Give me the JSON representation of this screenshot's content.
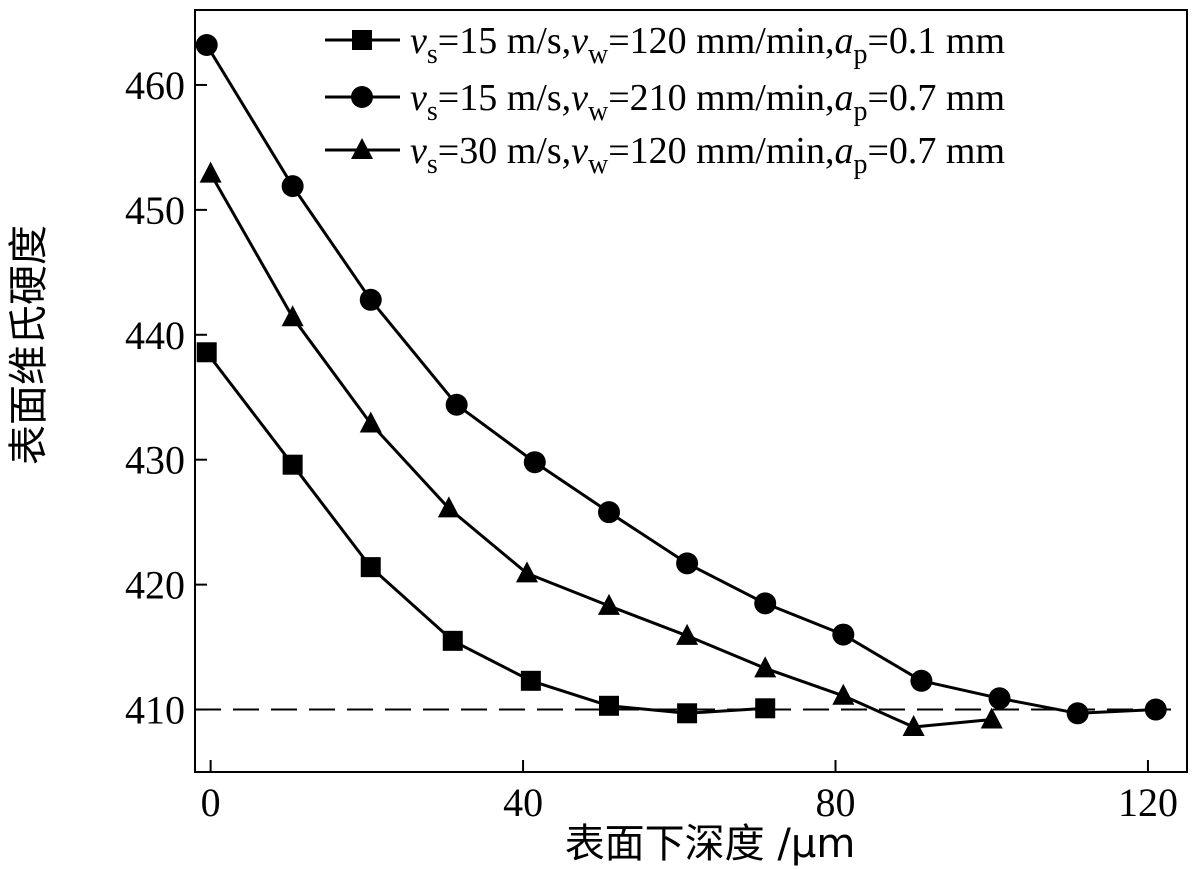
{
  "chart_data": {
    "type": "line",
    "xlabel": "表面下深度 /μm",
    "ylabel": "表面维氏硬度",
    "xlim": [
      -2,
      125
    ],
    "ylim": [
      405,
      466
    ],
    "xticks": [
      0,
      40,
      80,
      120
    ],
    "yticks": [
      410,
      420,
      430,
      440,
      450,
      460
    ],
    "grid": false,
    "legend_position": "top-right",
    "reference_line": {
      "y": 410,
      "style": "dashed"
    },
    "series": [
      {
        "legend": {
          "vs": "=15 m/s,",
          "vw": "=120 mm/min,",
          "ap": "=0.1 mm"
        },
        "marker": "square",
        "x": [
          -0.5,
          10.5,
          20.5,
          31,
          41,
          51,
          61,
          71
        ],
        "y": [
          438.6,
          429.6,
          421.4,
          415.5,
          412.3,
          410.3,
          409.7,
          410.1
        ]
      },
      {
        "legend": {
          "vs": "=15 m/s,",
          "vw": "=210 mm/min,",
          "ap": "=0.7 mm"
        },
        "marker": "circle",
        "x": [
          -0.5,
          10.5,
          20.5,
          31.5,
          41.5,
          51,
          61,
          71,
          81,
          91,
          101,
          111,
          121
        ],
        "y": [
          463.2,
          451.9,
          442.8,
          434.4,
          429.8,
          425.8,
          421.7,
          418.5,
          416.0,
          412.3,
          410.9,
          409.7,
          410.0
        ]
      },
      {
        "legend": {
          "vs": "=30 m/s,",
          "vw": "=120 mm/min,",
          "ap": "=0.7 mm"
        },
        "marker": "triangle",
        "x": [
          0,
          10.5,
          20.5,
          30.5,
          40.5,
          51,
          61,
          71,
          81,
          90,
          100
        ],
        "y": [
          452.9,
          441.4,
          432.9,
          426.1,
          420.9,
          418.3,
          415.9,
          413.3,
          411.1,
          408.6,
          409.2
        ]
      }
    ]
  }
}
